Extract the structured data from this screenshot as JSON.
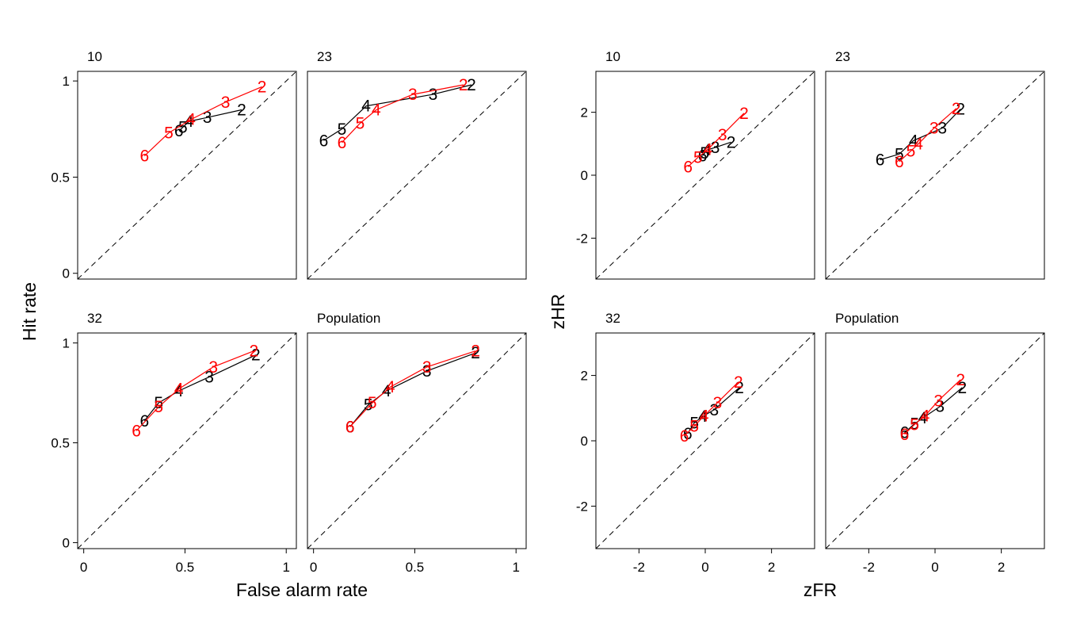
{
  "chart_data": [
    {
      "type": "scatter",
      "name": "roc",
      "xlabel": "False alarm rate",
      "ylabel": "Hit rate",
      "xlim": [
        -0.03,
        1.05
      ],
      "ylim": [
        -0.03,
        1.05
      ],
      "xticks": [
        "0",
        "0.5",
        "1"
      ],
      "yticks": [
        "0",
        "0.5",
        "1"
      ],
      "diagonal": "dashed",
      "colors": {
        "black_series": "#000000",
        "red_series": "#ff0000"
      },
      "panels": [
        {
          "title": "10",
          "black": {
            "labels": [
              "2",
              "3",
              "4",
              "5",
              "6"
            ],
            "x": [
              0.78,
              0.61,
              0.52,
              0.49,
              0.47
            ],
            "y": [
              0.85,
              0.81,
              0.79,
              0.76,
              0.74
            ]
          },
          "red": {
            "labels": [
              "2",
              "3",
              "4",
              "5",
              "6"
            ],
            "x": [
              0.88,
              0.7,
              0.53,
              0.42,
              0.3
            ],
            "y": [
              0.97,
              0.89,
              0.8,
              0.73,
              0.61
            ]
          }
        },
        {
          "title": "23",
          "black": {
            "labels": [
              "2",
              "3",
              "4",
              "5",
              "6"
            ],
            "x": [
              0.78,
              0.59,
              0.26,
              0.14,
              0.05
            ],
            "y": [
              0.98,
              0.93,
              0.87,
              0.75,
              0.69
            ]
          },
          "red": {
            "labels": [
              "2",
              "3",
              "4",
              "5",
              "6"
            ],
            "x": [
              0.74,
              0.49,
              0.31,
              0.23,
              0.14
            ],
            "y": [
              0.98,
              0.93,
              0.85,
              0.78,
              0.68
            ]
          }
        },
        {
          "title": "32",
          "black": {
            "labels": [
              "2",
              "3",
              "4",
              "5",
              "6"
            ],
            "x": [
              0.85,
              0.62,
              0.47,
              0.37,
              0.3
            ],
            "y": [
              0.94,
              0.83,
              0.76,
              0.7,
              0.61
            ]
          },
          "red": {
            "labels": [
              "2",
              "3",
              "4",
              "5",
              "6"
            ],
            "x": [
              0.84,
              0.64,
              0.47,
              0.37,
              0.26
            ],
            "y": [
              0.96,
              0.88,
              0.77,
              0.68,
              0.56
            ]
          }
        },
        {
          "title": "Population",
          "black": {
            "labels": [
              "2",
              "3",
              "4",
              "5",
              "6"
            ],
            "x": [
              0.8,
              0.56,
              0.36,
              0.27,
              0.18
            ],
            "y": [
              0.95,
              0.86,
              0.76,
              0.69,
              0.58
            ]
          },
          "red": {
            "labels": [
              "2",
              "3",
              "4",
              "5",
              "6"
            ],
            "x": [
              0.8,
              0.56,
              0.38,
              0.29,
              0.18
            ],
            "y": [
              0.96,
              0.88,
              0.78,
              0.7,
              0.58
            ]
          }
        }
      ]
    },
    {
      "type": "scatter",
      "name": "zroc",
      "xlabel": "zFR",
      "ylabel": "zHR",
      "xlim": [
        -3.3,
        3.3
      ],
      "ylim": [
        -3.3,
        3.3
      ],
      "xticks": [
        "-2",
        "0",
        "2"
      ],
      "yticks": [
        "-2",
        "0",
        "2"
      ],
      "diagonal": "dashed",
      "colors": {
        "black_series": "#000000",
        "red_series": "#ff0000"
      },
      "panels": [
        {
          "title": "10",
          "black": {
            "labels": [
              "2",
              "3",
              "4",
              "5",
              "6"
            ],
            "x": [
              0.78,
              0.3,
              0.05,
              -0.02,
              -0.08
            ],
            "y": [
              1.05,
              0.88,
              0.8,
              0.7,
              0.62
            ]
          },
          "red": {
            "labels": [
              "2",
              "3",
              "4",
              "5",
              "6"
            ],
            "x": [
              1.17,
              0.52,
              0.08,
              -0.22,
              -0.52
            ],
            "y": [
              1.97,
              1.28,
              0.82,
              0.57,
              0.27
            ]
          }
        },
        {
          "title": "23",
          "black": {
            "labels": [
              "2",
              "3",
              "4",
              "5",
              "6"
            ],
            "x": [
              0.77,
              0.22,
              -0.65,
              -1.08,
              -1.66
            ],
            "y": [
              2.1,
              1.5,
              1.1,
              0.67,
              0.49
            ]
          },
          "red": {
            "labels": [
              "2",
              "3",
              "4",
              "5",
              "6"
            ],
            "x": [
              0.64,
              -0.03,
              -0.5,
              -0.73,
              -1.08
            ],
            "y": [
              2.12,
              1.5,
              1.0,
              0.77,
              0.43
            ]
          }
        },
        {
          "title": "32",
          "black": {
            "labels": [
              "2",
              "3",
              "4",
              "5",
              "6"
            ],
            "x": [
              1.03,
              0.27,
              -0.07,
              -0.33,
              -0.53
            ],
            "y": [
              1.63,
              0.95,
              0.75,
              0.55,
              0.22
            ]
          },
          "red": {
            "labels": [
              "2",
              "3",
              "4",
              "5",
              "6"
            ],
            "x": [
              1.0,
              0.37,
              -0.03,
              -0.33,
              -0.63
            ],
            "y": [
              1.8,
              1.17,
              0.77,
              0.45,
              0.15
            ]
          }
        },
        {
          "title": "Population",
          "black": {
            "labels": [
              "2",
              "3",
              "4",
              "5",
              "6"
            ],
            "x": [
              0.82,
              0.15,
              -0.37,
              -0.62,
              -0.92
            ],
            "y": [
              1.63,
              1.05,
              0.7,
              0.52,
              0.25
            ]
          },
          "red": {
            "labels": [
              "2",
              "3",
              "4",
              "5",
              "6"
            ],
            "x": [
              0.77,
              0.1,
              -0.3,
              -0.62,
              -0.92
            ],
            "y": [
              1.87,
              1.23,
              0.77,
              0.5,
              0.2
            ]
          }
        }
      ]
    }
  ]
}
